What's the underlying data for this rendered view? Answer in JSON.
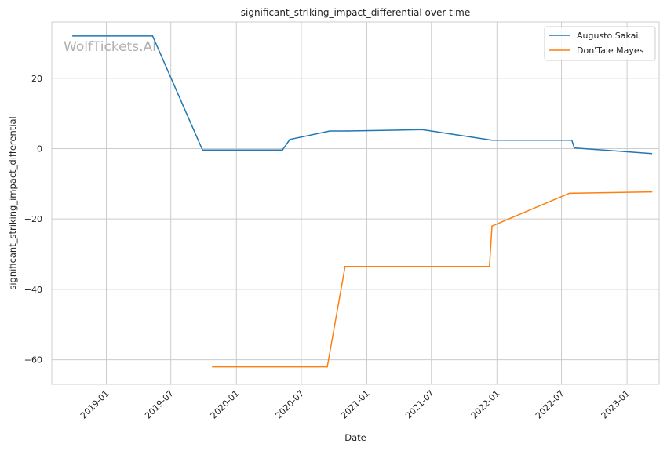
{
  "chart_data": {
    "type": "line",
    "title": "significant_striking_impact_differential over time",
    "xlabel": "Date",
    "ylabel": "significant_striking_impact_differential",
    "watermark": "WolfTickets.AI",
    "x_ticks": [
      "2019-01",
      "2019-07",
      "2020-01",
      "2020-07",
      "2021-01",
      "2021-07",
      "2022-01",
      "2022-07",
      "2023-01"
    ],
    "y_ticks": [
      20,
      0,
      -20,
      -40,
      -60
    ],
    "xlim": [
      "2018-08-01",
      "2023-04-01"
    ],
    "ylim": [
      -67,
      36
    ],
    "grid": true,
    "legend_position": "top-right",
    "series": [
      {
        "name": "Augusto Sakai",
        "color": "#1f77b4",
        "points": [
          {
            "x": "2018-09-29",
            "y": 32.0
          },
          {
            "x": "2019-05-11",
            "y": 32.0
          },
          {
            "x": "2019-09-28",
            "y": -0.4
          },
          {
            "x": "2020-05-09",
            "y": -0.4
          },
          {
            "x": "2020-05-30",
            "y": 2.6
          },
          {
            "x": "2020-09-19",
            "y": 5.0
          },
          {
            "x": "2020-11-07",
            "y": 5.0
          },
          {
            "x": "2021-06-05",
            "y": 5.4
          },
          {
            "x": "2021-12-18",
            "y": 2.4
          },
          {
            "x": "2022-07-30",
            "y": 2.4
          },
          {
            "x": "2022-08-06",
            "y": 0.2
          },
          {
            "x": "2023-03-11",
            "y": -1.4
          }
        ]
      },
      {
        "name": "Don'Tale Mayes",
        "color": "#ff7f0e",
        "points": [
          {
            "x": "2019-10-26",
            "y": -62.0
          },
          {
            "x": "2020-09-12",
            "y": -62.0
          },
          {
            "x": "2020-11-01",
            "y": -33.5
          },
          {
            "x": "2021-12-11",
            "y": -33.5
          },
          {
            "x": "2021-12-18",
            "y": -22.0
          },
          {
            "x": "2022-07-23",
            "y": -12.7
          },
          {
            "x": "2023-03-11",
            "y": -12.3
          }
        ]
      }
    ]
  }
}
